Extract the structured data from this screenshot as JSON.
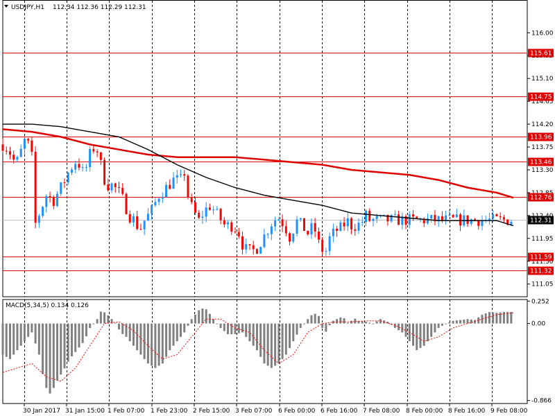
{
  "header": {
    "symbol": "USDJPY,H1",
    "ohlc": "112.34 112.36 112.29 112.31"
  },
  "colors": {
    "up_candle": "#1e90ff",
    "down_candle": "#ff0000",
    "sma_fast": "#000000",
    "sma_slow": "#e00000",
    "level_line": "#e00000",
    "grid": "#000000",
    "macd_hist": "#808080",
    "macd_signal": "#ff0000",
    "current_price_bg": "#000000",
    "level_tag_bg": "#e00000"
  },
  "chart_data": [
    {
      "type": "candlestick",
      "title": "USDJPY,H1",
      "ohlc_last": {
        "open": 112.34,
        "high": 112.36,
        "low": 112.29,
        "close": 112.31
      },
      "ylim": [
        110.8,
        116.4
      ],
      "y_ticks": [
        "116.00",
        "115.55",
        "115.10",
        "114.65",
        "114.20",
        "113.75",
        "113.30",
        "112.85",
        "112.40",
        "111.95",
        "111.50",
        "111.05"
      ],
      "x_labels": [
        "30 Jan 2017",
        "31 Jan 15:00",
        "1 Feb 07:00",
        "1 Feb 23:00",
        "2 Feb 15:00",
        "3 Feb 07:00",
        "6 Feb 00:00",
        "6 Feb 16:00",
        "7 Feb 08:00",
        "8 Feb 00:00",
        "8 Feb 16:00",
        "9 Feb 08:00"
      ],
      "horizontal_levels": [
        115.61,
        114.75,
        113.96,
        113.46,
        112.76,
        111.59,
        111.32
      ],
      "level_labels": [
        "115.61",
        "114.75",
        "113.96",
        "113.46",
        "112.76",
        "111.59",
        "111.32"
      ],
      "current_price": 112.31,
      "current_price_label": "112.31",
      "close_path": [
        [
          0,
          113.8
        ],
        [
          8,
          113.7
        ],
        [
          18,
          113.4
        ],
        [
          26,
          113.7
        ],
        [
          32,
          113.95
        ],
        [
          40,
          113.55
        ],
        [
          44,
          112.2
        ],
        [
          52,
          112.5
        ],
        [
          60,
          112.8
        ],
        [
          70,
          112.7
        ],
        [
          82,
          113.0
        ],
        [
          92,
          113.3
        ],
        [
          102,
          113.5
        ],
        [
          112,
          113.2
        ],
        [
          120,
          113.6
        ],
        [
          128,
          113.8
        ],
        [
          135,
          113.4
        ],
        [
          142,
          113.0
        ],
        [
          150,
          113.0
        ],
        [
          158,
          112.9
        ],
        [
          166,
          112.7
        ],
        [
          174,
          112.4
        ],
        [
          182,
          112.3
        ],
        [
          188,
          112.1
        ],
        [
          195,
          112.3
        ],
        [
          205,
          112.5
        ],
        [
          215,
          112.8
        ],
        [
          225,
          112.95
        ],
        [
          235,
          113.1
        ],
        [
          245,
          113.1
        ],
        [
          250,
          113.25
        ],
        [
          256,
          112.7
        ],
        [
          262,
          112.5
        ],
        [
          270,
          112.3
        ],
        [
          278,
          112.5
        ],
        [
          286,
          112.6
        ],
        [
          296,
          112.4
        ],
        [
          306,
          112.2
        ],
        [
          316,
          112.2
        ],
        [
          324,
          112.1
        ],
        [
          332,
          111.75
        ],
        [
          340,
          111.7
        ],
        [
          348,
          111.72
        ],
        [
          356,
          111.9
        ],
        [
          364,
          112.1
        ],
        [
          372,
          112.3
        ],
        [
          380,
          112.35
        ],
        [
          388,
          112.2
        ],
        [
          396,
          111.95
        ],
        [
          404,
          112.3
        ],
        [
          412,
          112.2
        ],
        [
          420,
          112.05
        ],
        [
          428,
          112.2
        ],
        [
          436,
          111.8
        ],
        [
          444,
          111.65
        ],
        [
          450,
          111.95
        ],
        [
          458,
          112.1
        ],
        [
          466,
          112.15
        ],
        [
          474,
          112.3
        ],
        [
          480,
          112.2
        ],
        [
          488,
          112.2
        ],
        [
          496,
          112.3
        ],
        [
          500,
          112.4
        ],
        [
          503,
          112.31
        ]
      ],
      "series": [
        {
          "name": "",
          "points": [
            [
              0,
              114.2
            ],
            [
              40,
              114.2
            ],
            [
              80,
              114.15
            ],
            [
              120,
              114.05
            ],
            [
              160,
              113.95
            ],
            [
              200,
              113.7
            ],
            [
              240,
              113.4
            ],
            [
              280,
              113.15
            ],
            [
              320,
              112.95
            ],
            [
              360,
              112.8
            ],
            [
              400,
              112.7
            ],
            [
              440,
              112.6
            ],
            [
              480,
              112.45
            ],
            [
              520,
              112.4
            ],
            [
              560,
              112.35
            ],
            [
              600,
              112.3
            ],
            [
              640,
              112.3
            ],
            [
              660,
              112.3
            ],
            [
              680,
              112.3
            ],
            [
              703,
              112.2
            ]
          ]
        },
        {
          "name": "",
          "points": [
            [
              0,
              114.1
            ],
            [
              40,
              114.05
            ],
            [
              80,
              113.95
            ],
            [
              120,
              113.8
            ],
            [
              160,
              113.7
            ],
            [
              200,
              113.6
            ],
            [
              240,
              113.55
            ],
            [
              280,
              113.55
            ],
            [
              320,
              113.55
            ],
            [
              360,
              113.5
            ],
            [
              400,
              113.45
            ],
            [
              440,
              113.4
            ],
            [
              480,
              113.3
            ],
            [
              520,
              113.25
            ],
            [
              560,
              113.2
            ],
            [
              600,
              113.1
            ],
            [
              640,
              112.95
            ],
            [
              680,
              112.85
            ],
            [
              703,
              112.75
            ]
          ]
        }
      ]
    },
    {
      "type": "bar",
      "title": "MACD(5,34,5) 0.134 0.126",
      "ylim": [
        -0.9,
        0.27
      ],
      "y_ticks": [
        "0.252",
        "0.00",
        "-0.866"
      ],
      "histogram_path": [
        [
          0,
          -0.35
        ],
        [
          10,
          -0.4
        ],
        [
          20,
          -0.3
        ],
        [
          30,
          -0.2
        ],
        [
          40,
          -0.1
        ],
        [
          50,
          -0.35
        ],
        [
          58,
          -0.7
        ],
        [
          66,
          -0.8
        ],
        [
          74,
          -0.65
        ],
        [
          82,
          -0.55
        ],
        [
          92,
          -0.4
        ],
        [
          102,
          -0.3
        ],
        [
          112,
          -0.2
        ],
        [
          120,
          -0.05
        ],
        [
          130,
          0.05
        ],
        [
          136,
          0.15
        ],
        [
          144,
          0.1
        ],
        [
          150,
          0.05
        ],
        [
          156,
          0.0
        ],
        [
          162,
          -0.1
        ],
        [
          170,
          -0.15
        ],
        [
          180,
          -0.25
        ],
        [
          190,
          -0.35
        ],
        [
          200,
          -0.45
        ],
        [
          210,
          -0.5
        ],
        [
          220,
          -0.45
        ],
        [
          230,
          -0.3
        ],
        [
          240,
          -0.2
        ],
        [
          250,
          -0.1
        ],
        [
          260,
          0.05
        ],
        [
          270,
          0.15
        ],
        [
          278,
          0.18
        ],
        [
          284,
          0.12
        ],
        [
          290,
          0.05
        ],
        [
          300,
          -0.05
        ],
        [
          310,
          -0.12
        ],
        [
          320,
          -0.12
        ],
        [
          330,
          -0.1
        ],
        [
          340,
          -0.2
        ],
        [
          350,
          -0.3
        ],
        [
          360,
          -0.45
        ],
        [
          370,
          -0.5
        ],
        [
          380,
          -0.45
        ],
        [
          390,
          -0.35
        ],
        [
          400,
          -0.2
        ],
        [
          410,
          -0.05
        ],
        [
          420,
          0.05
        ],
        [
          428,
          0.12
        ],
        [
          436,
          0.08
        ],
        [
          440,
          -0.05
        ],
        [
          446,
          -0.1
        ],
        [
          452,
          0.02
        ],
        [
          460,
          0.05
        ],
        [
          468,
          0.08
        ],
        [
          476,
          0.0
        ],
        [
          484,
          0.06
        ],
        [
          490,
          0.03
        ],
        [
          500,
          0.02
        ],
        [
          510,
          0.0
        ],
        [
          520,
          0.05
        ],
        [
          530,
          0.02
        ],
        [
          540,
          -0.05
        ],
        [
          550,
          -0.1
        ],
        [
          560,
          -0.2
        ],
        [
          570,
          -0.3
        ],
        [
          580,
          -0.25
        ],
        [
          590,
          -0.15
        ],
        [
          600,
          -0.05
        ],
        [
          610,
          0.0
        ],
        [
          620,
          0.03
        ],
        [
          630,
          0.04
        ],
        [
          640,
          0.05
        ],
        [
          650,
          0.04
        ],
        [
          660,
          0.1
        ],
        [
          670,
          0.13
        ],
        [
          680,
          0.12
        ],
        [
          690,
          0.13
        ],
        [
          703,
          0.13
        ]
      ],
      "signal_path": [
        [
          0,
          -0.55
        ],
        [
          40,
          -0.45
        ],
        [
          60,
          -0.6
        ],
        [
          80,
          -0.65
        ],
        [
          100,
          -0.5
        ],
        [
          120,
          -0.25
        ],
        [
          140,
          0.0
        ],
        [
          160,
          0.02
        ],
        [
          180,
          -0.08
        ],
        [
          200,
          -0.25
        ],
        [
          220,
          -0.4
        ],
        [
          240,
          -0.35
        ],
        [
          260,
          -0.15
        ],
        [
          280,
          0.05
        ],
        [
          300,
          0.05
        ],
        [
          320,
          -0.05
        ],
        [
          340,
          -0.1
        ],
        [
          360,
          -0.3
        ],
        [
          380,
          -0.45
        ],
        [
          400,
          -0.35
        ],
        [
          420,
          -0.1
        ],
        [
          440,
          0.0
        ],
        [
          460,
          0.02
        ],
        [
          480,
          0.02
        ],
        [
          500,
          0.03
        ],
        [
          520,
          0.03
        ],
        [
          540,
          -0.02
        ],
        [
          560,
          -0.1
        ],
        [
          580,
          -0.2
        ],
        [
          600,
          -0.15
        ],
        [
          620,
          -0.05
        ],
        [
          640,
          0.0
        ],
        [
          660,
          0.05
        ],
        [
          680,
          0.1
        ],
        [
          703,
          0.12
        ]
      ]
    }
  ]
}
